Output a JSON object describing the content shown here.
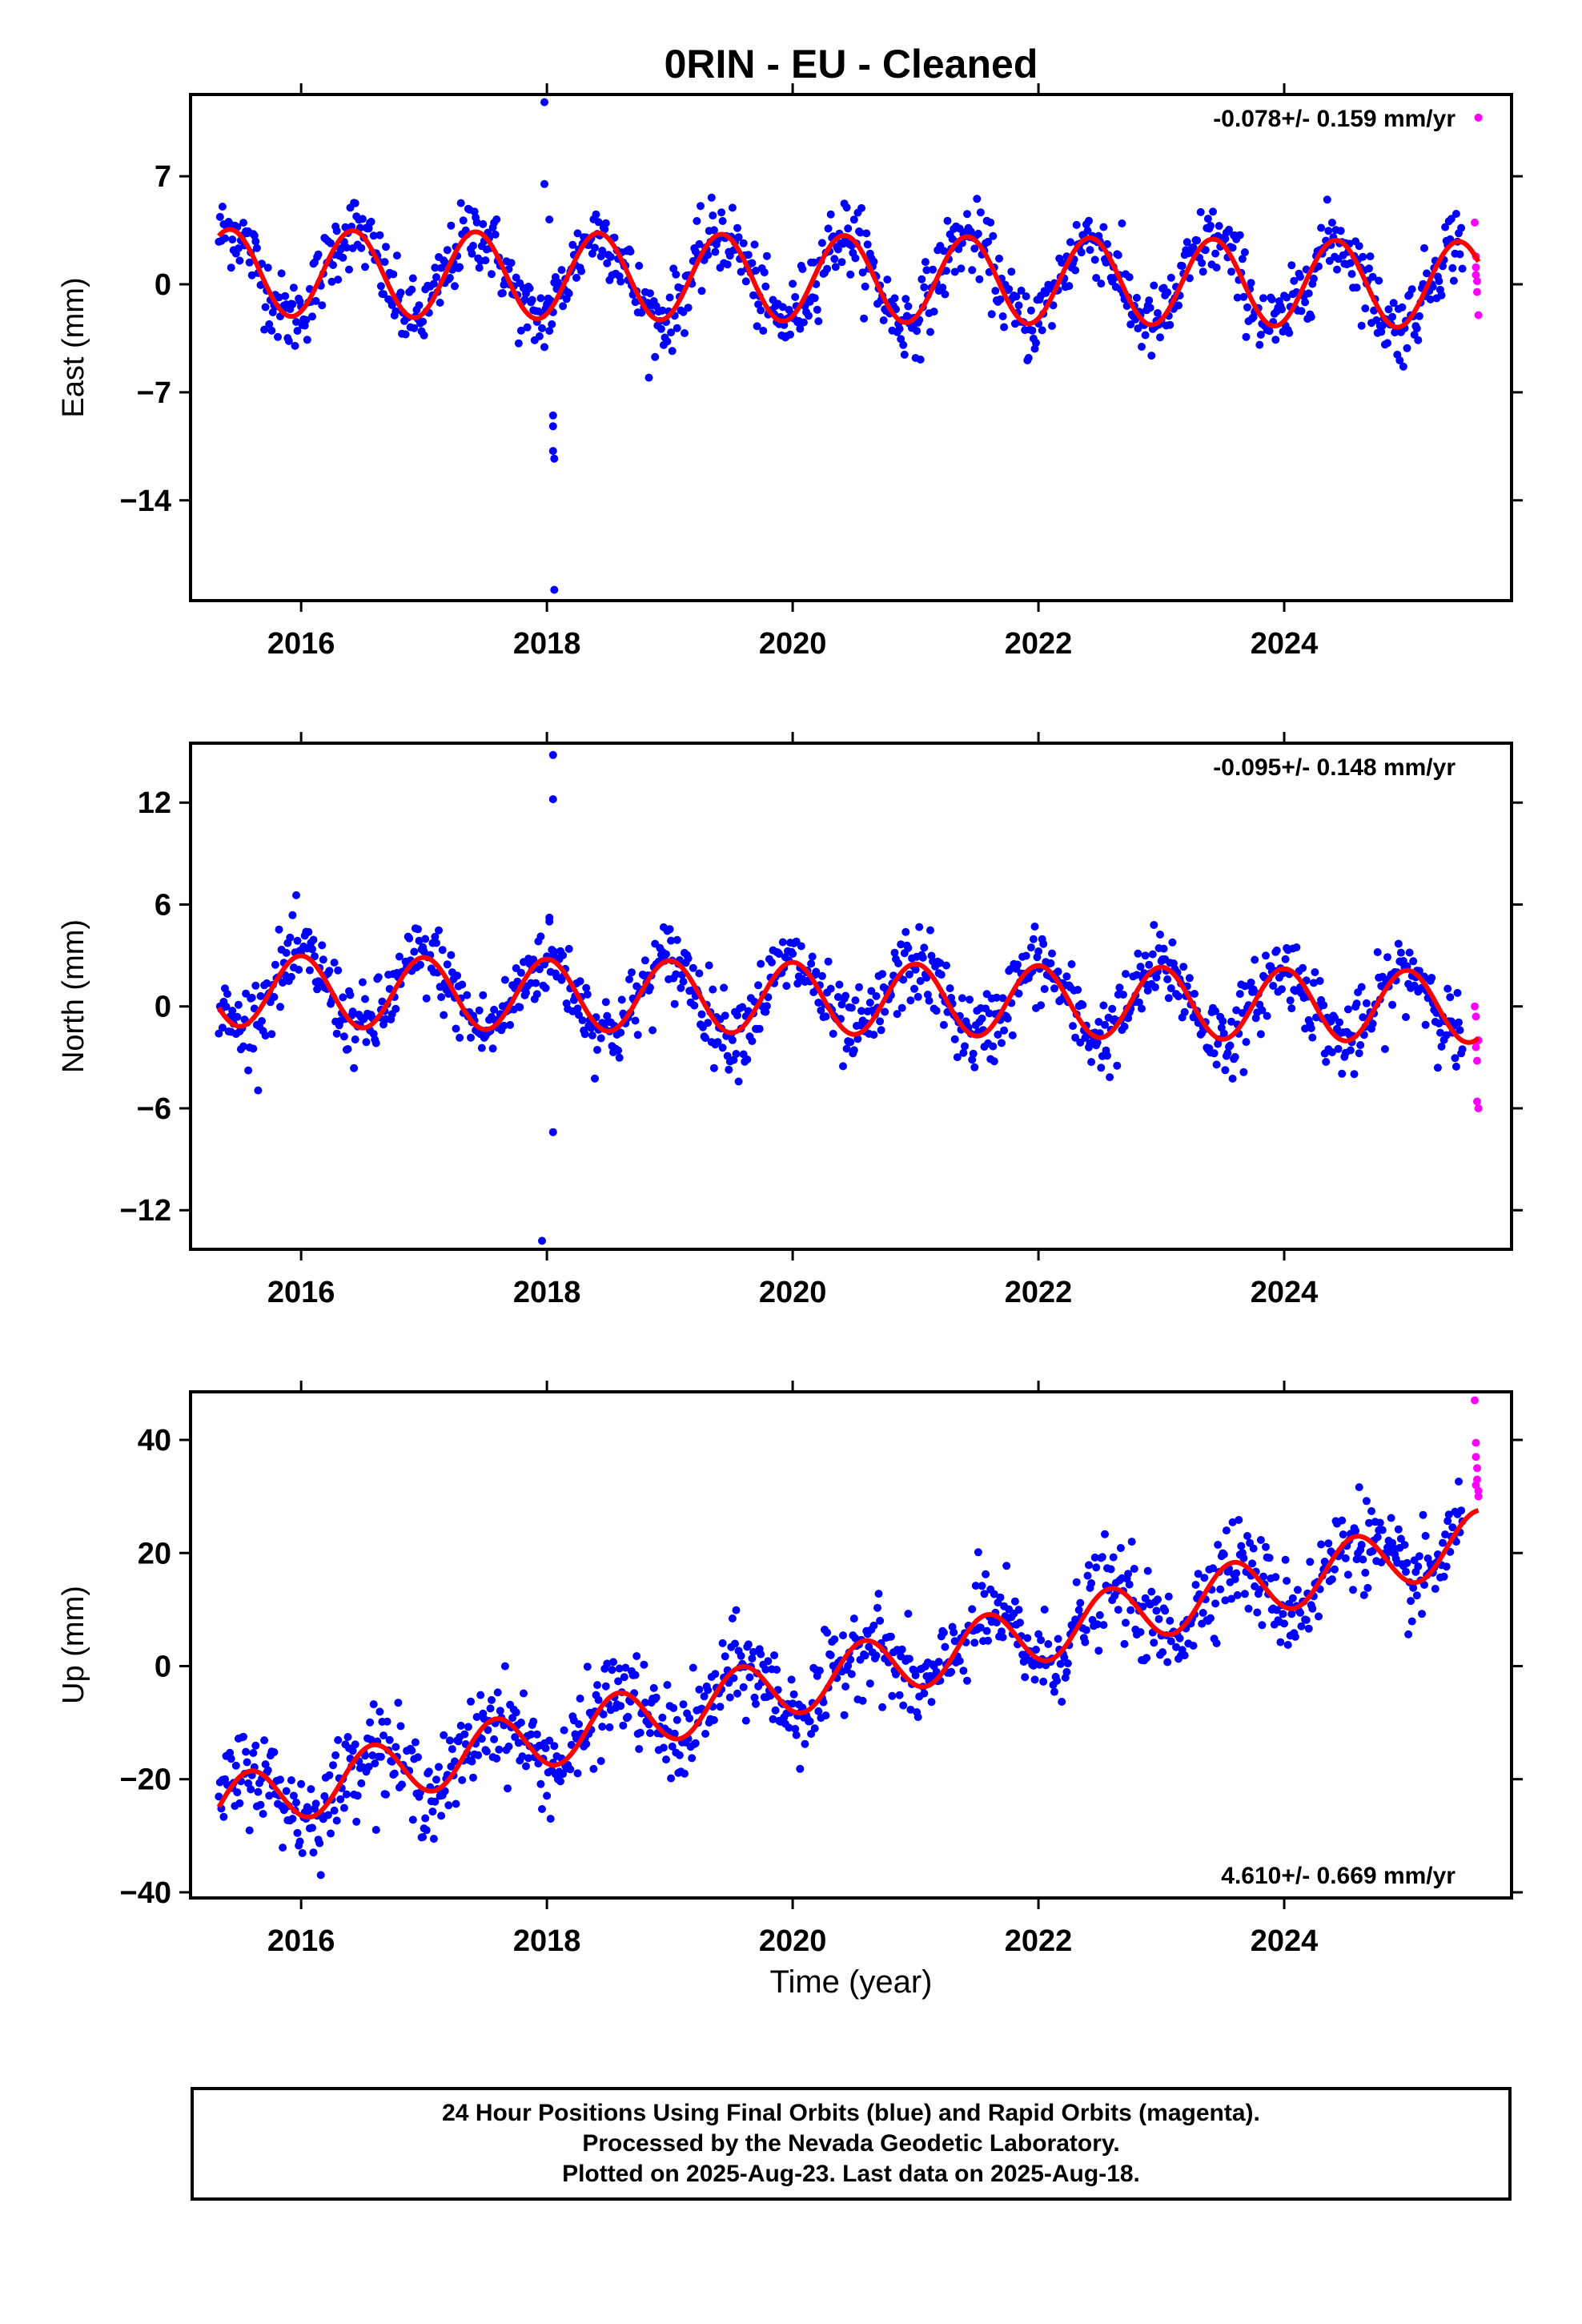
{
  "colors": {
    "final_orbit_points": "#0000ff",
    "rapid_orbit_points": "#ff00ff",
    "model_fit": "#ff0000",
    "frame": "#000000"
  },
  "chart_data": {
    "type": "scatter",
    "title": "0RIN  - EU - Cleaned",
    "x_axis": {
      "label": "Time (year)",
      "range": [
        2015.1,
        2025.85
      ],
      "ticks": [
        2016,
        2018,
        2020,
        2022,
        2024
      ]
    },
    "series_legend": [
      "24 Hour Positions Using Final Orbits (blue)",
      "Rapid Orbits (magenta)"
    ],
    "panels": [
      {
        "component": "East",
        "ylabel": "East (mm)",
        "ylim": [
          -20.5,
          12.3
        ],
        "yticks": [
          7,
          0,
          -7,
          -14
        ],
        "rate_label": "-0.078+/- 0.159 mm/yr",
        "rate_position": "top-right",
        "model": {
          "trend_mm_per_yr": -0.078,
          "offset_mm": 0.4,
          "annual_amp_mm": 2.8,
          "peak_phase_yr": 0.42
        },
        "points": {
          "scatter_mm": 1.2,
          "spacing_yr": 0.01,
          "x_start": 2015.33,
          "x_end": 2025.45
        },
        "outliers": [
          {
            "x": 2017.98,
            "y": 11.8
          },
          {
            "x": 2017.98,
            "y": 6.5
          },
          {
            "x": 2018.05,
            "y": -8.5
          },
          {
            "x": 2018.05,
            "y": -9.2
          },
          {
            "x": 2018.05,
            "y": -10.8
          },
          {
            "x": 2018.06,
            "y": -11.3
          },
          {
            "x": 2018.06,
            "y": -19.8
          },
          {
            "x": 2018.02,
            "y": 4.2
          }
        ],
        "rapid_points": [
          {
            "x": 2025.55,
            "y": 4.0
          },
          {
            "x": 2025.56,
            "y": 1.8
          },
          {
            "x": 2025.56,
            "y": 1.1
          },
          {
            "x": 2025.57,
            "y": 0.2
          },
          {
            "x": 2025.57,
            "y": -0.5
          },
          {
            "x": 2025.58,
            "y": -2.0
          },
          {
            "x": 2025.58,
            "y": 10.8
          },
          {
            "x": 2025.56,
            "y": 0.6
          }
        ]
      },
      {
        "component": "North",
        "ylabel": "North (mm)",
        "ylim": [
          -14.3,
          15.5
        ],
        "yticks": [
          12,
          6,
          0,
          -6,
          -12
        ],
        "rate_label": "-0.095+/- 0.148 mm/yr",
        "rate_position": "top-right",
        "model": {
          "trend_mm_per_yr": -0.095,
          "offset_mm": 0.5,
          "annual_amp_mm": 2.1,
          "peak_phase_yr": 0.0
        },
        "points": {
          "scatter_mm": 1.15,
          "spacing_yr": 0.01,
          "x_start": 2015.33,
          "x_end": 2025.45
        },
        "outliers": [
          {
            "x": 2018.05,
            "y": 14.8
          },
          {
            "x": 2018.05,
            "y": 12.2
          },
          {
            "x": 2018.05,
            "y": -7.4
          },
          {
            "x": 2017.96,
            "y": -13.8
          },
          {
            "x": 2018.02,
            "y": 5.0
          }
        ],
        "rapid_points": [
          {
            "x": 2025.55,
            "y": 0.0
          },
          {
            "x": 2025.56,
            "y": -0.6
          },
          {
            "x": 2025.56,
            "y": -2.4
          },
          {
            "x": 2025.57,
            "y": -3.2
          },
          {
            "x": 2025.57,
            "y": -5.6
          },
          {
            "x": 2025.58,
            "y": -6.0
          },
          {
            "x": 2025.58,
            "y": -2.0
          }
        ]
      },
      {
        "component": "Up",
        "ylabel": "Up (mm)",
        "ylim": [
          -41,
          48.5
        ],
        "yticks": [
          40,
          20,
          0,
          -20,
          -40
        ],
        "rate_label": "4.610+/- 0.669 mm/yr",
        "rate_position": "bottom-right",
        "model": {
          "trend_mm_per_yr": 4.61,
          "offset_mm": -3.4,
          "annual_amp_mm": 5.2,
          "peak_phase_yr": 0.58
        },
        "points": {
          "scatter_mm": 4.0,
          "spacing_yr": 0.01,
          "x_start": 2015.33,
          "x_end": 2025.45
        },
        "outliers": [],
        "rapid_points": [
          {
            "x": 2025.55,
            "y": 47.0
          },
          {
            "x": 2025.56,
            "y": 39.5
          },
          {
            "x": 2025.56,
            "y": 37.0
          },
          {
            "x": 2025.57,
            "y": 35.0
          },
          {
            "x": 2025.57,
            "y": 33.0
          },
          {
            "x": 2025.58,
            "y": 31.0
          },
          {
            "x": 2025.58,
            "y": 30.0
          },
          {
            "x": 2025.56,
            "y": 32.0
          }
        ]
      }
    ]
  },
  "caption": {
    "line1": "24 Hour Positions Using Final Orbits (blue) and Rapid Orbits (magenta).",
    "line2": "Processed by the Nevada Geodetic Laboratory.",
    "line3": "Plotted on 2025-Aug-23. Last data on 2025-Aug-18."
  }
}
